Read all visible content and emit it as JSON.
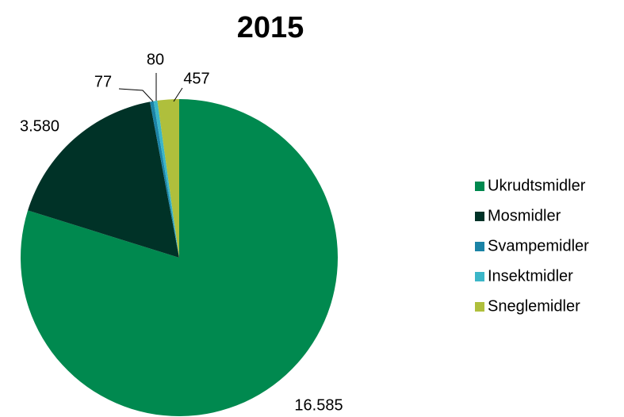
{
  "chart_data": {
    "type": "pie",
    "title": "2015",
    "categories": [
      "Ukrudtsmidler",
      "Mosmidler",
      "Svampemidler",
      "Insektmidler",
      "Sneglemidler"
    ],
    "values": [
      16585,
      3580,
      77,
      80,
      457
    ],
    "value_labels": [
      "16.585",
      "3.580",
      "77",
      "80",
      "457"
    ],
    "colors": [
      "#00894f",
      "#003227",
      "#1b83a6",
      "#3bb6c8",
      "#afbf3c"
    ],
    "legend": "right"
  }
}
